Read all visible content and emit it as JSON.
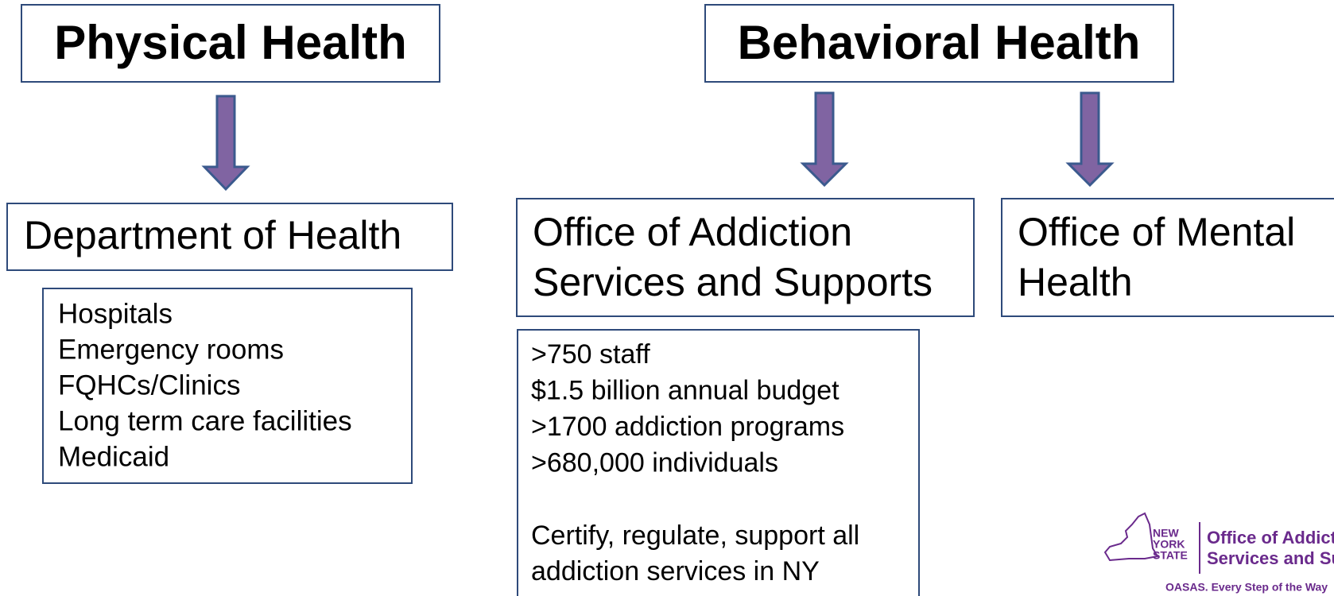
{
  "physical": {
    "title": "Physical Health",
    "agency": "Department of Health",
    "items": [
      "Hospitals",
      "Emergency rooms",
      "FQHCs/Clinics",
      "Long term care facilities",
      "Medicaid"
    ]
  },
  "behavioral": {
    "title": "Behavioral Health",
    "agencies": [
      {
        "lines": [
          "Office of Addiction",
          "Services and Supports"
        ]
      },
      {
        "lines": [
          "Office of Mental",
          "Health"
        ]
      }
    ],
    "facts": [
      "&gt;750 staff",
      "$1.5 billion annual budget",
      "&gt;1700 addiction programs",
      "&gt;680,000 individuals"
    ],
    "mission": [
      "Certify, regulate, support all",
      "addiction services in NY"
    ]
  },
  "logo": {
    "state": [
      "NEW",
      "YORK",
      "STATE"
    ],
    "agency": [
      "Office of Addiction",
      "Services and Supports"
    ],
    "tagline": "OASAS. Every Step of the Way"
  }
}
